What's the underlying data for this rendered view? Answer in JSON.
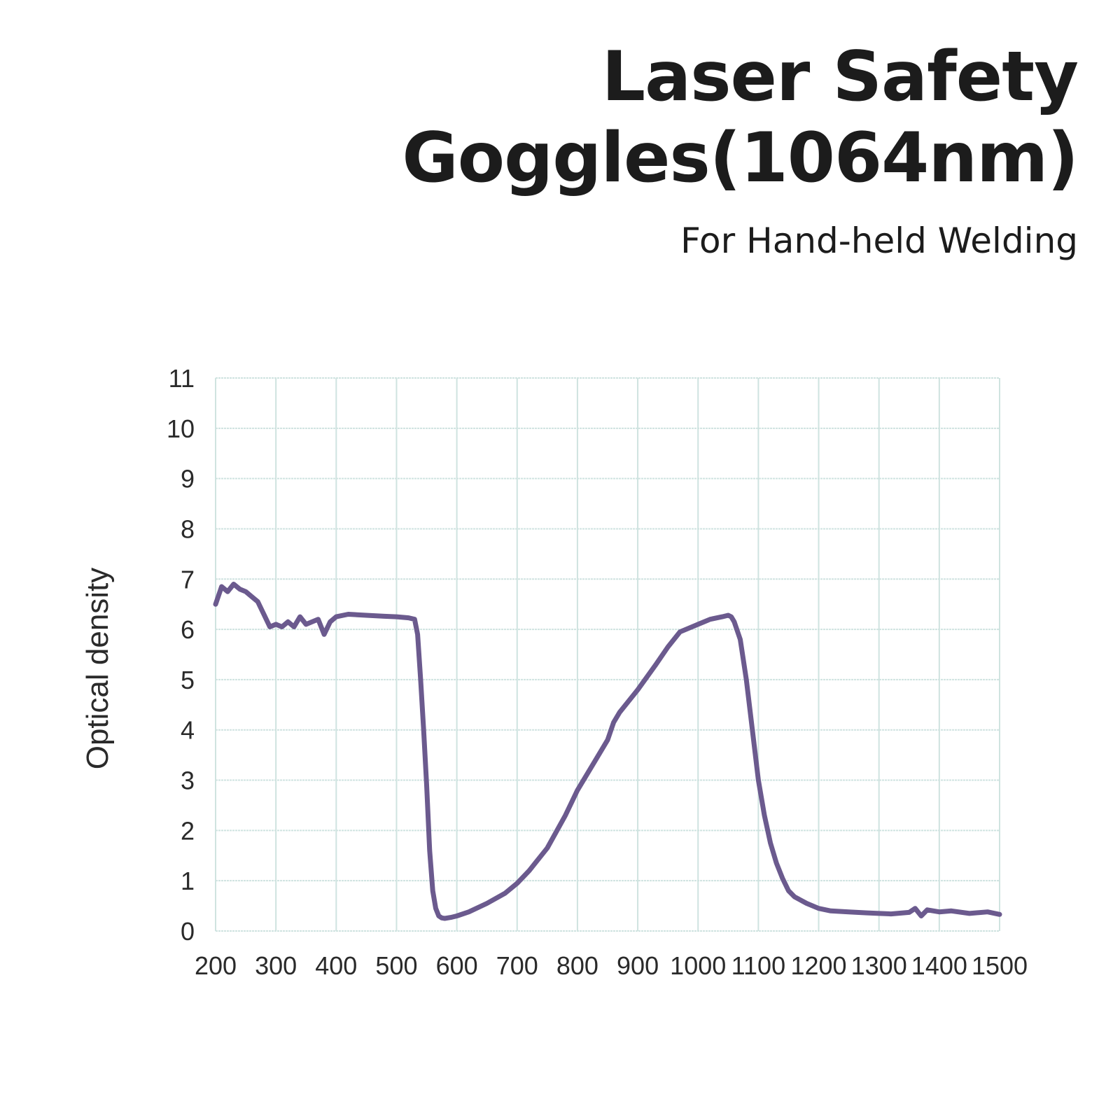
{
  "header": {
    "title_line1": "Laser Safety",
    "title_line2": "Goggles(1064nm)",
    "subtitle": "For Hand-held Welding"
  },
  "chart_data": {
    "type": "line",
    "xlabel": "",
    "ylabel": "Optical density",
    "xlim": [
      200,
      1500
    ],
    "ylim": [
      0,
      11
    ],
    "x_ticks": [
      200,
      300,
      400,
      500,
      600,
      700,
      800,
      900,
      1000,
      1100,
      1200,
      1300,
      1400,
      1500
    ],
    "y_ticks": [
      0,
      1,
      2,
      3,
      4,
      5,
      6,
      7,
      8,
      9,
      10,
      11
    ],
    "grid": true,
    "legend": "none",
    "colors": {
      "line": "#6b5a8e",
      "grid": "#cfe3e0",
      "text": "#2a2a2a"
    },
    "series": [
      {
        "x": [
          200,
          210,
          220,
          230,
          240,
          250,
          260,
          270,
          280,
          290,
          300,
          310,
          320,
          330,
          340,
          350,
          360,
          370,
          380,
          390,
          400,
          420,
          450,
          480,
          500,
          520,
          530,
          535,
          540,
          545,
          550,
          555,
          560,
          565,
          570,
          575,
          580,
          590,
          600,
          620,
          650,
          680,
          700,
          720,
          750,
          780,
          800,
          830,
          850,
          860,
          870,
          900,
          930,
          950,
          970,
          1000,
          1020,
          1040,
          1050,
          1055,
          1060,
          1070,
          1080,
          1090,
          1100,
          1110,
          1120,
          1130,
          1140,
          1150,
          1160,
          1180,
          1200,
          1220,
          1250,
          1280,
          1300,
          1320,
          1350,
          1360,
          1370,
          1380,
          1400,
          1420,
          1450,
          1480,
          1500
        ],
        "y": [
          6.5,
          6.85,
          6.75,
          6.9,
          6.8,
          6.75,
          6.65,
          6.55,
          6.3,
          6.05,
          6.1,
          6.05,
          6.15,
          6.05,
          6.25,
          6.1,
          6.15,
          6.2,
          5.9,
          6.15,
          6.25,
          6.3,
          6.28,
          6.26,
          6.25,
          6.23,
          6.2,
          5.9,
          5.0,
          4.0,
          2.9,
          1.6,
          0.8,
          0.45,
          0.3,
          0.26,
          0.25,
          0.27,
          0.3,
          0.38,
          0.55,
          0.75,
          0.95,
          1.2,
          1.65,
          2.3,
          2.8,
          3.4,
          3.8,
          4.15,
          4.35,
          4.8,
          5.3,
          5.65,
          5.95,
          6.1,
          6.2,
          6.25,
          6.28,
          6.25,
          6.15,
          5.8,
          5.0,
          4.0,
          3.0,
          2.3,
          1.75,
          1.35,
          1.05,
          0.8,
          0.68,
          0.55,
          0.45,
          0.4,
          0.38,
          0.36,
          0.35,
          0.34,
          0.37,
          0.45,
          0.3,
          0.42,
          0.38,
          0.4,
          0.35,
          0.38,
          0.33
        ]
      }
    ]
  }
}
